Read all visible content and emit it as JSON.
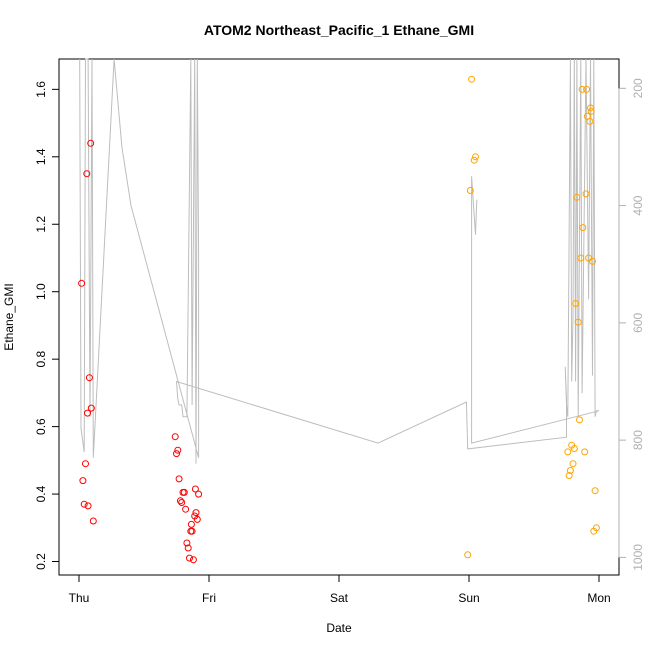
{
  "chart_data": {
    "type": "scatter",
    "title": "ATOM2 Northeast_Pacific_1 Ethane_GMI",
    "xlabel": "Date",
    "ylabel": "Ethane_GMI",
    "x_ticks": [
      "Thu",
      "Fri",
      "Sat",
      "Sun",
      "Mon"
    ],
    "xlim": [
      -0.03,
      4.1
    ],
    "ylim": [
      0.16,
      1.69
    ],
    "y_ticks": [
      "0.2",
      "0.4",
      "0.6",
      "0.8",
      "1.0",
      "1.2",
      "1.4",
      "1.6"
    ],
    "y2_ticks": [
      "200",
      "400",
      "600",
      "800",
      "1000"
    ],
    "y2lim": [
      1030,
      150
    ],
    "colors": {
      "series_1": "#ff0000",
      "series_2": "#ffa500",
      "pressure_line": "#bdbdbd"
    },
    "series": [
      {
        "marker": "open-circle",
        "color": "#ff0000",
        "points": [
          [
            0.02,
            1.025
          ],
          [
            0.03,
            0.44
          ],
          [
            0.04,
            0.37
          ],
          [
            0.05,
            0.49
          ],
          [
            0.06,
            1.35
          ],
          [
            0.065,
            0.64
          ],
          [
            0.07,
            0.365
          ],
          [
            0.08,
            0.745
          ],
          [
            0.09,
            1.44
          ],
          [
            0.095,
            0.655
          ],
          [
            0.11,
            0.32
          ],
          [
            0.74,
            0.57
          ],
          [
            0.75,
            0.52
          ],
          [
            0.76,
            0.53
          ],
          [
            0.77,
            0.445
          ],
          [
            0.78,
            0.38
          ],
          [
            0.79,
            0.375
          ],
          [
            0.8,
            0.405
          ],
          [
            0.81,
            0.405
          ],
          [
            0.82,
            0.355
          ],
          [
            0.83,
            0.255
          ],
          [
            0.84,
            0.24
          ],
          [
            0.85,
            0.21
          ],
          [
            0.86,
            0.29
          ],
          [
            0.865,
            0.31
          ],
          [
            0.87,
            0.29
          ],
          [
            0.88,
            0.205
          ],
          [
            0.89,
            0.335
          ],
          [
            0.895,
            0.415
          ],
          [
            0.9,
            0.345
          ],
          [
            0.91,
            0.325
          ],
          [
            0.92,
            0.4
          ]
        ]
      },
      {
        "marker": "open-circle",
        "color": "#ffa500",
        "points": [
          [
            2.99,
            0.22
          ],
          [
            3.01,
            1.3
          ],
          [
            3.02,
            1.63
          ],
          [
            3.04,
            1.39
          ],
          [
            3.05,
            1.4
          ],
          [
            3.76,
            0.525
          ],
          [
            3.77,
            0.455
          ],
          [
            3.78,
            0.47
          ],
          [
            3.79,
            0.545
          ],
          [
            3.8,
            0.49
          ],
          [
            3.81,
            0.535
          ],
          [
            3.82,
            0.965
          ],
          [
            3.83,
            1.28
          ],
          [
            3.84,
            0.91
          ],
          [
            3.85,
            0.62
          ],
          [
            3.86,
            1.1
          ],
          [
            3.87,
            1.6
          ],
          [
            3.875,
            1.19
          ],
          [
            3.89,
            0.525
          ],
          [
            3.9,
            1.29
          ],
          [
            3.905,
            1.6
          ],
          [
            3.91,
            1.52
          ],
          [
            3.92,
            1.1
          ],
          [
            3.93,
            1.505
          ],
          [
            3.935,
            1.545
          ],
          [
            3.94,
            1.535
          ],
          [
            3.95,
            1.09
          ],
          [
            3.96,
            0.29
          ],
          [
            3.97,
            0.41
          ],
          [
            3.98,
            0.3
          ]
        ]
      }
    ],
    "pressure_profile": [
      [
        0.005,
        150
      ],
      [
        0.015,
        780
      ],
      [
        0.04,
        820
      ],
      [
        0.05,
        150
      ],
      [
        0.07,
        150
      ],
      [
        0.085,
        760
      ],
      [
        0.1,
        150
      ],
      [
        0.11,
        830
      ],
      [
        0.27,
        150
      ],
      [
        0.33,
        300
      ],
      [
        0.4,
        400
      ],
      [
        0.92,
        830
      ],
      [
        0.92,
        480
      ],
      [
        0.91,
        150
      ],
      [
        0.9,
        840
      ],
      [
        0.89,
        150
      ],
      [
        0.87,
        740
      ],
      [
        0.86,
        150
      ],
      [
        0.83,
        760
      ],
      [
        0.8,
        760
      ],
      [
        0.79,
        740
      ],
      [
        0.77,
        740
      ],
      [
        0.76,
        730
      ],
      [
        0.75,
        700
      ],
      [
        2.3,
        805
      ],
      [
        2.98,
        735
      ],
      [
        2.99,
        815
      ],
      [
        3.75,
        795
      ],
      [
        3.75,
        730
      ],
      [
        3.74,
        675
      ],
      [
        3.75,
        740
      ],
      [
        3.76,
        760
      ],
      [
        3.78,
        150
      ],
      [
        3.79,
        700
      ],
      [
        3.8,
        590
      ],
      [
        3.81,
        150
      ],
      [
        3.82,
        700
      ],
      [
        3.83,
        150
      ],
      [
        3.84,
        760
      ],
      [
        3.86,
        150
      ],
      [
        3.87,
        720
      ],
      [
        3.9,
        150
      ],
      [
        3.92,
        560
      ],
      [
        3.935,
        150
      ],
      [
        3.95,
        690
      ],
      [
        3.96,
        150
      ],
      [
        3.97,
        760
      ],
      [
        3.98,
        750
      ],
      [
        4.0,
        750
      ],
      [
        3.02,
        805
      ],
      [
        3.02,
        350
      ],
      [
        3.05,
        450
      ],
      [
        3.06,
        390
      ]
    ]
  }
}
